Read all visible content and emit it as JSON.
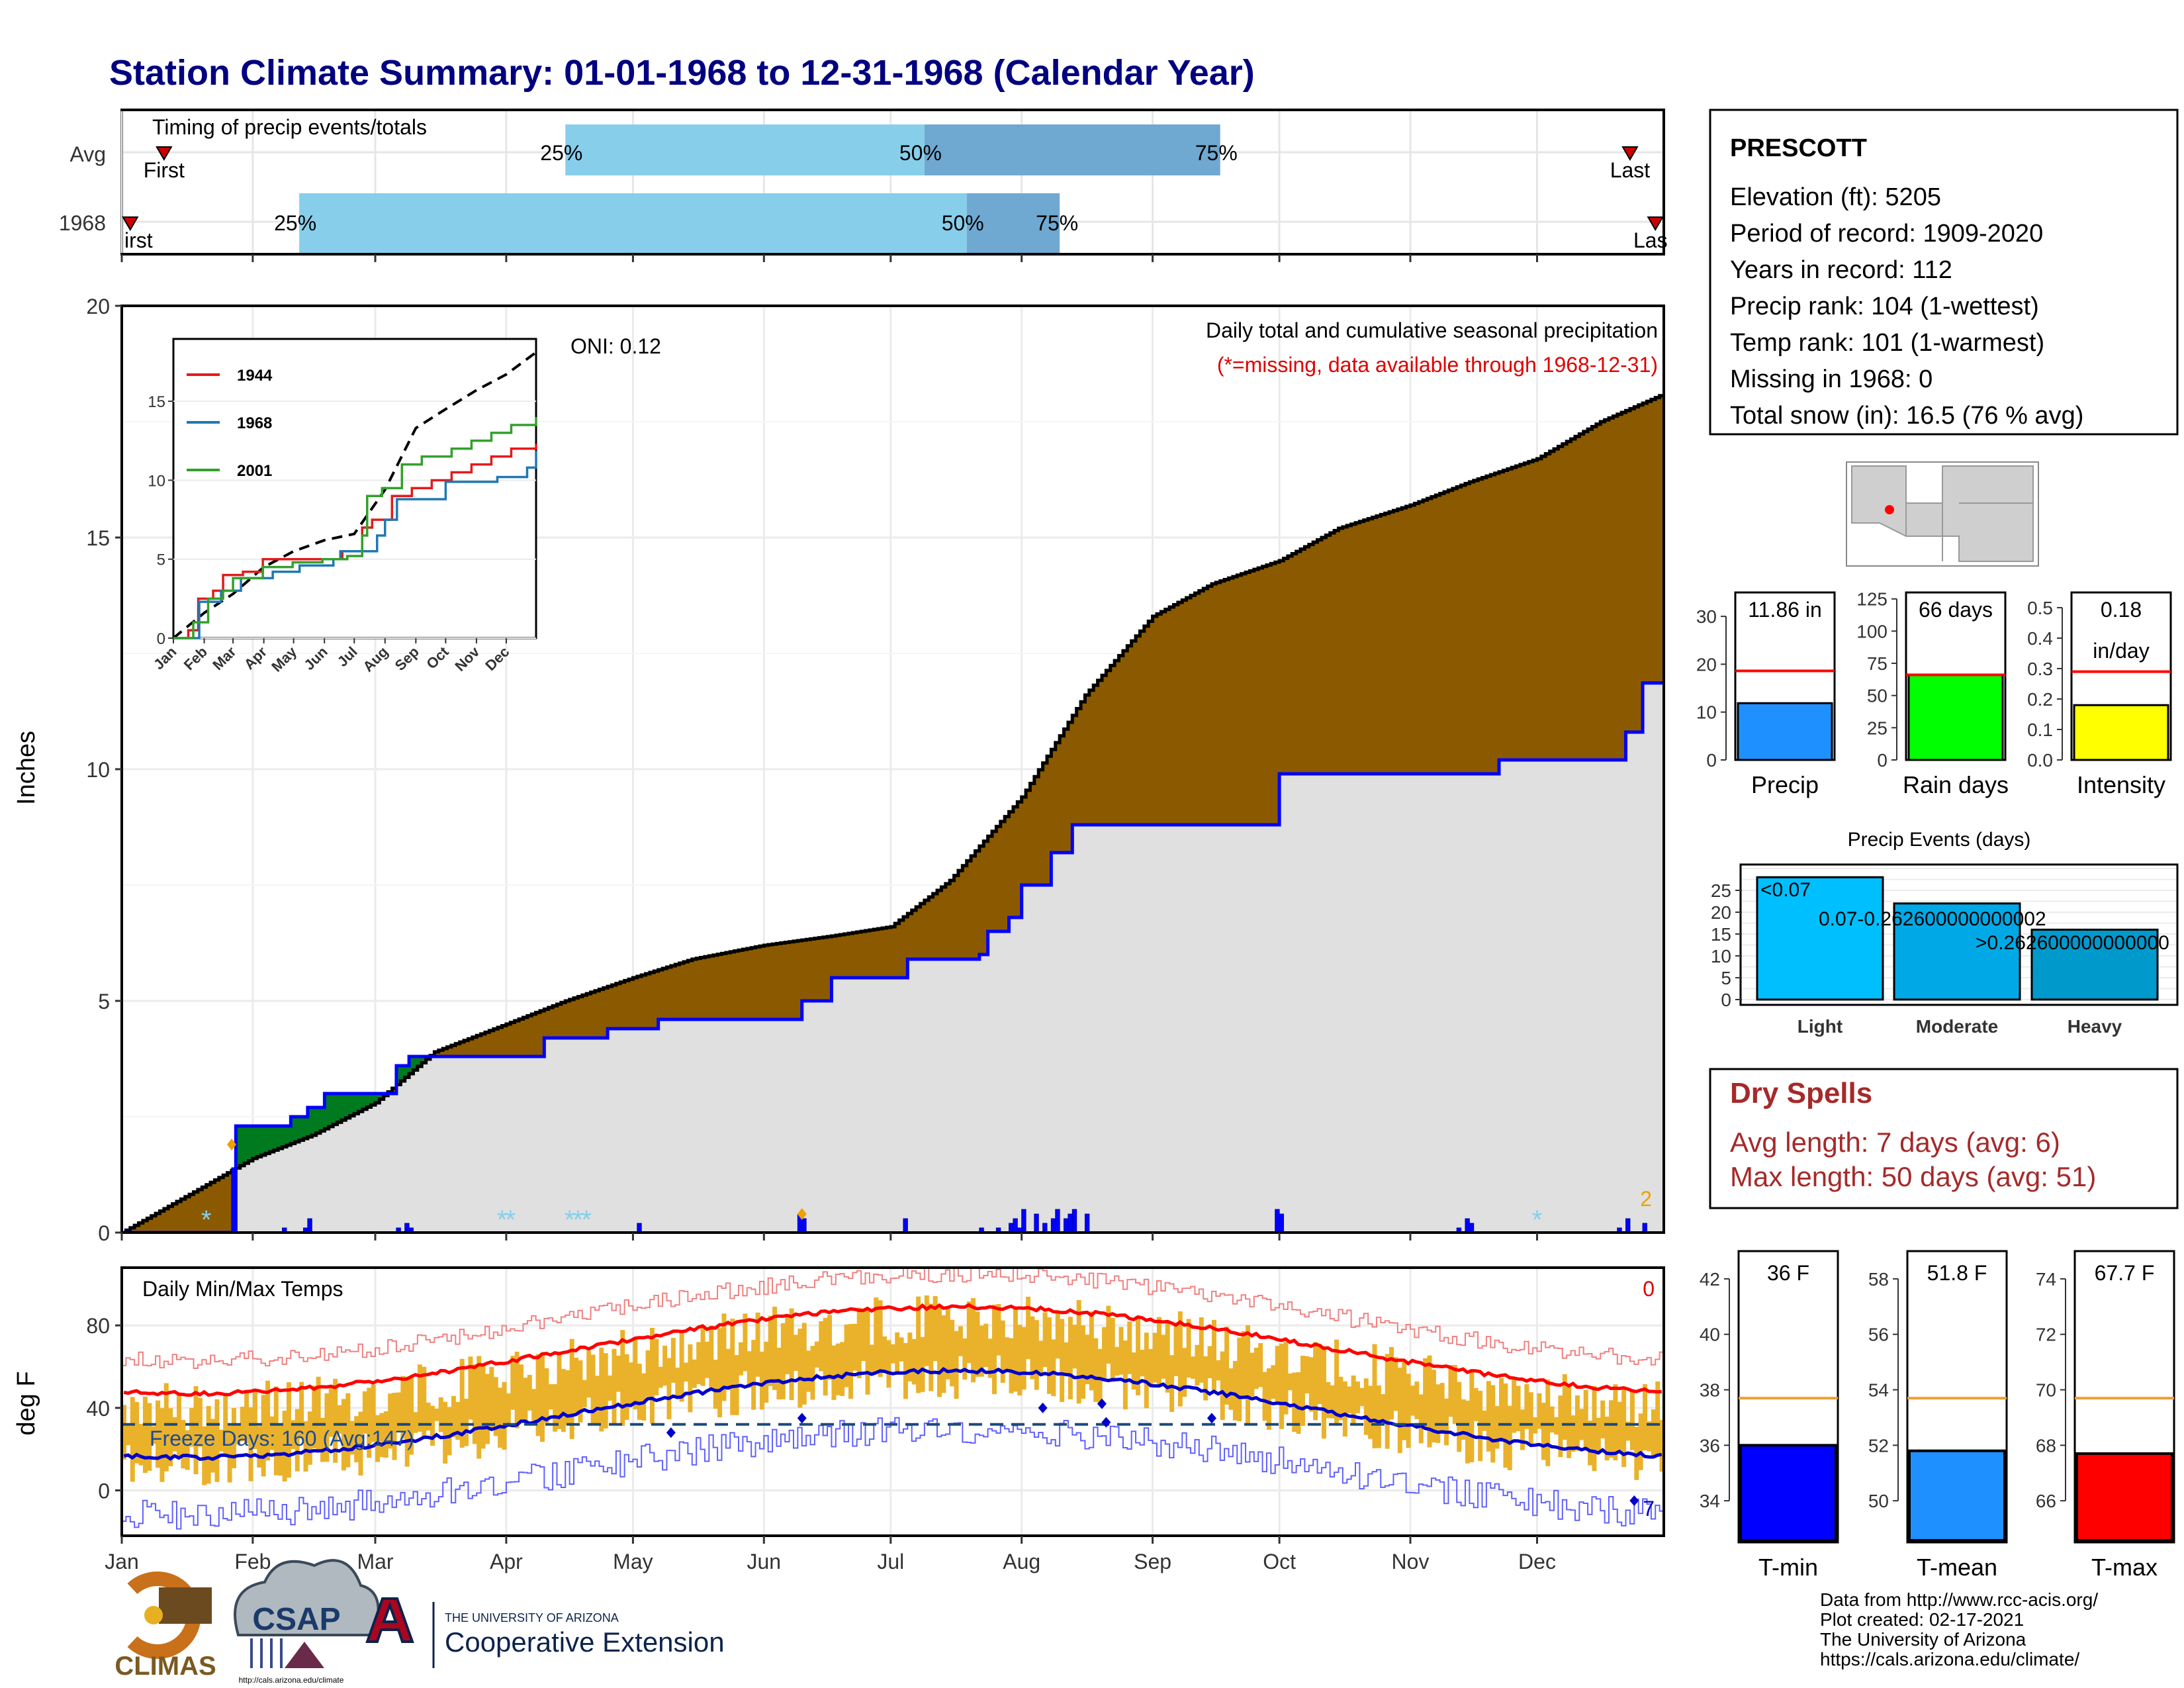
{
  "title": "Station Climate Summary: 01-01-1968 to 12-31-1968 (Calendar Year)",
  "months": [
    "Jan",
    "Feb",
    "Mar",
    "Apr",
    "May",
    "Jun",
    "Jul",
    "Aug",
    "Sep",
    "Oct",
    "Nov",
    "Dec"
  ],
  "timing": {
    "label": "Timing of precip events/totals",
    "rows": [
      "Avg",
      "1968"
    ],
    "first_label": "First",
    "first_label_1968": "irst",
    "last_label": "Last",
    "last_label_1968": "Las",
    "avg": {
      "p25": 25,
      "p50": 50,
      "p75": 75,
      "first_day": 10,
      "last_day": 357
    },
    "y1968": {
      "p25": 25,
      "p50": 50,
      "p75": 75,
      "first_day": 2,
      "last_day": 363
    },
    "markers": {
      "avg": {
        "first": 10,
        "q25": 105,
        "q50": 190,
        "q75": 260,
        "last": 357
      },
      "y1968": {
        "first": 2,
        "q25": 42,
        "q50": 200,
        "q75": 222,
        "last": 363
      }
    }
  },
  "precip": {
    "ylabel": "Inches",
    "yticks": [
      "0",
      "5",
      "10",
      "15",
      "20"
    ],
    "ylim": [
      0,
      20
    ],
    "heading": "Daily total and cumulative seasonal precipitation",
    "note": "(*=missing, data available through 1968-12-31)",
    "oni": "ONI: 0.12",
    "corner_count": "2",
    "avg_cum": [
      [
        0,
        0
      ],
      [
        31,
        1.6
      ],
      [
        45,
        2.1
      ],
      [
        60,
        2.8
      ],
      [
        74,
        3.9
      ],
      [
        91,
        4.5
      ],
      [
        105,
        5.0
      ],
      [
        121,
        5.5
      ],
      [
        135,
        5.9
      ],
      [
        152,
        6.2
      ],
      [
        168,
        6.4
      ],
      [
        182,
        6.6
      ],
      [
        196,
        7.6
      ],
      [
        213,
        9.4
      ],
      [
        228,
        11.6
      ],
      [
        244,
        13.3
      ],
      [
        258,
        14.0
      ],
      [
        274,
        14.5
      ],
      [
        288,
        15.2
      ],
      [
        305,
        15.7
      ],
      [
        319,
        16.2
      ],
      [
        335,
        16.7
      ],
      [
        350,
        17.5
      ],
      [
        365,
        18.1
      ]
    ],
    "y1968_cum": [
      [
        0,
        0
      ],
      [
        26,
        0
      ],
      [
        27,
        2.3
      ],
      [
        38,
        2.3
      ],
      [
        40,
        2.5
      ],
      [
        44,
        2.7
      ],
      [
        48,
        3.0
      ],
      [
        60,
        3.0
      ],
      [
        65,
        3.6
      ],
      [
        68,
        3.8
      ],
      [
        95,
        3.8
      ],
      [
        100,
        4.2
      ],
      [
        115,
        4.4
      ],
      [
        127,
        4.6
      ],
      [
        160,
        4.6
      ],
      [
        161,
        5.0
      ],
      [
        168,
        5.5
      ],
      [
        185,
        5.5
      ],
      [
        186,
        5.9
      ],
      [
        203,
        6.0
      ],
      [
        205,
        6.5
      ],
      [
        210,
        6.8
      ],
      [
        213,
        7.5
      ],
      [
        220,
        8.2
      ],
      [
        225,
        8.8
      ],
      [
        273,
        8.8
      ],
      [
        274,
        9.9
      ],
      [
        324,
        9.9
      ],
      [
        326,
        10.2
      ],
      [
        354,
        10.2
      ],
      [
        356,
        10.8
      ],
      [
        360,
        11.86
      ],
      [
        365,
        11.86
      ]
    ],
    "daily_bars": [
      [
        26,
        1.4
      ],
      [
        38,
        0.1
      ],
      [
        43,
        0.1
      ],
      [
        44,
        0.3
      ],
      [
        65,
        0.1
      ],
      [
        67,
        0.2
      ],
      [
        68,
        0.1
      ],
      [
        122,
        0.2
      ],
      [
        160,
        0.4
      ],
      [
        161,
        0.3
      ],
      [
        185,
        0.3
      ],
      [
        203,
        0.1
      ],
      [
        207,
        0.1
      ],
      [
        210,
        0.2
      ],
      [
        211,
        0.3
      ],
      [
        212,
        0.1
      ],
      [
        213,
        0.5
      ],
      [
        216,
        0.4
      ],
      [
        218,
        0.2
      ],
      [
        220,
        0.3
      ],
      [
        221,
        0.5
      ],
      [
        223,
        0.3
      ],
      [
        224,
        0.4
      ],
      [
        225,
        0.5
      ],
      [
        228,
        0.4
      ],
      [
        273,
        0.5
      ],
      [
        274,
        0.4
      ],
      [
        316,
        0.1
      ],
      [
        318,
        0.3
      ],
      [
        319,
        0.2
      ],
      [
        354,
        0.1
      ],
      [
        356,
        0.3
      ],
      [
        360,
        0.2
      ]
    ],
    "snow_days": [
      20,
      90,
      92,
      106,
      108,
      110,
      335
    ],
    "orange_marks": [
      [
        26,
        1.9
      ],
      [
        161,
        0.4
      ]
    ]
  },
  "inset": {
    "series": [
      {
        "name": "1944",
        "color": "#e31a1c",
        "points": [
          [
            0,
            0
          ],
          [
            15,
            0.5
          ],
          [
            25,
            2.5
          ],
          [
            40,
            3
          ],
          [
            50,
            4
          ],
          [
            70,
            4.2
          ],
          [
            90,
            5
          ],
          [
            120,
            5
          ],
          [
            150,
            5
          ],
          [
            170,
            5.5
          ],
          [
            190,
            7
          ],
          [
            200,
            7.5
          ],
          [
            220,
            9
          ],
          [
            240,
            9.5
          ],
          [
            260,
            10
          ],
          [
            280,
            10.5
          ],
          [
            300,
            11
          ],
          [
            320,
            11.5
          ],
          [
            340,
            12
          ],
          [
            365,
            12.3
          ]
        ]
      },
      {
        "name": "1968",
        "color": "#1f78b4",
        "points": [
          [
            0,
            0
          ],
          [
            26,
            2.3
          ],
          [
            48,
            3
          ],
          [
            68,
            3.8
          ],
          [
            100,
            4.2
          ],
          [
            127,
            4.6
          ],
          [
            161,
            5.0
          ],
          [
            168,
            5.5
          ],
          [
            205,
            6.5
          ],
          [
            213,
            7.5
          ],
          [
            225,
            8.8
          ],
          [
            274,
            9.9
          ],
          [
            326,
            10.2
          ],
          [
            356,
            10.8
          ],
          [
            365,
            11.86
          ]
        ]
      },
      {
        "name": "2001",
        "color": "#33a02c",
        "points": [
          [
            0,
            0
          ],
          [
            20,
            1
          ],
          [
            35,
            2.5
          ],
          [
            50,
            3
          ],
          [
            60,
            3.8
          ],
          [
            90,
            4.5
          ],
          [
            120,
            4.8
          ],
          [
            150,
            5
          ],
          [
            175,
            5.2
          ],
          [
            190,
            6.5
          ],
          [
            195,
            9
          ],
          [
            210,
            9.5
          ],
          [
            230,
            11
          ],
          [
            250,
            11.5
          ],
          [
            280,
            12
          ],
          [
            300,
            12.5
          ],
          [
            320,
            13
          ],
          [
            340,
            13.5
          ],
          [
            365,
            14
          ]
        ]
      }
    ],
    "avg_points": [
      [
        0,
        0
      ],
      [
        31,
        1.6
      ],
      [
        60,
        2.8
      ],
      [
        91,
        4.5
      ],
      [
        121,
        5.5
      ],
      [
        152,
        6.2
      ],
      [
        182,
        6.6
      ],
      [
        213,
        9.4
      ],
      [
        244,
        13.3
      ],
      [
        274,
        14.5
      ],
      [
        305,
        15.7
      ],
      [
        335,
        16.7
      ],
      [
        365,
        18.1
      ]
    ],
    "yticks": [
      "0",
      "5",
      "10",
      "15"
    ],
    "ylim": [
      0,
      18
    ]
  },
  "station": {
    "name": "PRESCOTT",
    "lines": [
      "Elevation (ft): 5205",
      "Period of record: 1909-2020",
      "Years in record: 112",
      "Precip rank: 104 (1-wettest)",
      "Temp rank: 101 (1-warmest)",
      "Missing in 1968: 0",
      "Total snow (in): 16.5 (76 % avg)"
    ]
  },
  "mini_bars": [
    {
      "label": "Precip",
      "value": 11.86,
      "value_text": "11.86 in",
      "avg": 18.6,
      "ylim": [
        0,
        35
      ],
      "yticks": [
        "0",
        "10",
        "20",
        "30"
      ],
      "tick_values": [
        0,
        10,
        20,
        30
      ],
      "color": "#1e90ff"
    },
    {
      "label": "Rain days",
      "value": 66,
      "value_text": "66 days",
      "avg": 66,
      "ylim": [
        0,
        130
      ],
      "yticks": [
        "0",
        "25",
        "50",
        "75",
        "100",
        "125"
      ],
      "tick_values": [
        0,
        25,
        50,
        75,
        100,
        125
      ],
      "color": "#00ff00"
    },
    {
      "label": "Intensity",
      "value": 0.18,
      "value_text": "0.18",
      "value_text2": "in/day",
      "avg": 0.29,
      "ylim": [
        0,
        0.55
      ],
      "yticks": [
        "0.0",
        "0.1",
        "0.2",
        "0.3",
        "0.4",
        "0.5"
      ],
      "tick_values": [
        0,
        0.1,
        0.2,
        0.3,
        0.4,
        0.5
      ],
      "color": "#ffff00"
    }
  ],
  "events": {
    "title": "Precip Events (days)",
    "categories": [
      "Light",
      "Moderate",
      "Heavy"
    ],
    "labels": [
      "<0.07",
      "0.07-0.262600000000002",
      ">0.262600000000000"
    ],
    "values": [
      28,
      22,
      16
    ],
    "yticks": [
      "0",
      "5",
      "10",
      "15",
      "20",
      "25"
    ],
    "ylim": [
      0,
      30
    ],
    "colors": [
      "#00bfff",
      "#00a9e6",
      "#0099cc"
    ]
  },
  "dry_spells": {
    "title": "Dry Spells",
    "avg_line": "Avg length: 7 days (avg: 6)",
    "max_line": "Max length: 50 days (avg: 51)"
  },
  "temps": {
    "label": "Daily Min/Max Temps",
    "ylabel": "deg F",
    "yticks": [
      "0",
      "40",
      "80"
    ],
    "ylim": [
      -22,
      108
    ],
    "freeze_text": "Freeze Days: 160 (Avg:147)",
    "corner_top": "0",
    "corner_bottom": "7",
    "freeze_line": 32
  },
  "temp_bars": [
    {
      "label": "T-min",
      "value": 36,
      "value_text": "36 F",
      "avg": 37.7,
      "ylim": [
        32.5,
        43
      ],
      "yticks": [
        "34",
        "36",
        "38",
        "40",
        "42"
      ],
      "tick_values": [
        34,
        36,
        38,
        40,
        42
      ],
      "color": "#0000ff"
    },
    {
      "label": "T-mean",
      "value": 51.8,
      "value_text": "51.8 F",
      "avg": 53.7,
      "ylim": [
        48.5,
        59
      ],
      "yticks": [
        "50",
        "52",
        "54",
        "56",
        "58"
      ],
      "tick_values": [
        50,
        52,
        54,
        56,
        58
      ],
      "color": "#1e90ff"
    },
    {
      "label": "T-max",
      "value": 67.7,
      "value_text": "67.7 F",
      "avg": 69.7,
      "ylim": [
        64.5,
        75
      ],
      "yticks": [
        "66",
        "68",
        "70",
        "72",
        "74"
      ],
      "tick_values": [
        66,
        68,
        70,
        72,
        74
      ],
      "color": "#ff0000"
    }
  ],
  "footer": {
    "lines": [
      "Data from http://www.rcc-acis.org/",
      "Plot created: 02-17-2021",
      "The University of Arizona",
      "https://cals.arizona.edu/climate/"
    ],
    "climas": "CLIMAS",
    "csap": "CSAP",
    "csap_url": "http://cals.arizona.edu/climate",
    "ua_line1": "THE UNIVERSITY OF ARIZONA",
    "ua_line2": "Cooperative Extension"
  },
  "colors": {
    "title": "#000080",
    "brown": "#8b5a00",
    "green": "#007a1f",
    "grey_fill": "#e0e0e0",
    "blue_line": "#0000ff",
    "light_blue": "#87ceeb",
    "mid_blue": "#6fa8d0",
    "dry_red": "#a52a2a",
    "orange": "#f0b020"
  }
}
